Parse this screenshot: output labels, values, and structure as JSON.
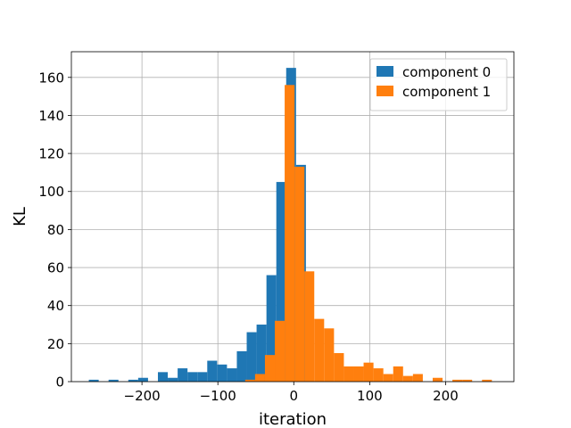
{
  "chart_data": {
    "type": "bar",
    "subtype": "histogram",
    "xlabel": "iteration",
    "ylabel": "KL",
    "xlim": [
      -293,
      290
    ],
    "ylim": [
      0,
      173.5
    ],
    "xticks": [
      -200,
      -100,
      0,
      100,
      200
    ],
    "yticks": [
      0,
      20,
      40,
      60,
      80,
      100,
      120,
      140,
      160
    ],
    "grid": true,
    "legend_position": "top-right",
    "series": [
      {
        "name": "component 0",
        "color": "#1f77b4",
        "bin_width": 13,
        "bins": [
          {
            "x0": -270,
            "count": 1
          },
          {
            "x0": -244,
            "count": 1
          },
          {
            "x0": -218,
            "count": 1
          },
          {
            "x0": -205,
            "count": 2
          },
          {
            "x0": -179,
            "count": 5
          },
          {
            "x0": -166,
            "count": 2
          },
          {
            "x0": -153,
            "count": 7
          },
          {
            "x0": -140,
            "count": 5
          },
          {
            "x0": -127,
            "count": 5
          },
          {
            "x0": -114,
            "count": 11
          },
          {
            "x0": -101,
            "count": 9
          },
          {
            "x0": -88,
            "count": 7
          },
          {
            "x0": -75,
            "count": 16
          },
          {
            "x0": -62,
            "count": 26
          },
          {
            "x0": -49,
            "count": 30
          },
          {
            "x0": -36,
            "count": 56
          },
          {
            "x0": -23,
            "count": 105
          },
          {
            "x0": -10,
            "count": 165
          },
          {
            "x0": 3,
            "count": 114
          }
        ]
      },
      {
        "name": "component 1",
        "color": "#ff7f0e",
        "bin_width": 13,
        "bins": [
          {
            "x0": -64,
            "count": 1
          },
          {
            "x0": -51,
            "count": 4
          },
          {
            "x0": -38,
            "count": 14
          },
          {
            "x0": -25,
            "count": 32
          },
          {
            "x0": -12,
            "count": 156
          },
          {
            "x0": 1,
            "count": 113
          },
          {
            "x0": 14,
            "count": 58
          },
          {
            "x0": 27,
            "count": 33
          },
          {
            "x0": 40,
            "count": 28
          },
          {
            "x0": 53,
            "count": 15
          },
          {
            "x0": 66,
            "count": 8
          },
          {
            "x0": 79,
            "count": 8
          },
          {
            "x0": 92,
            "count": 10
          },
          {
            "x0": 105,
            "count": 7
          },
          {
            "x0": 118,
            "count": 4
          },
          {
            "x0": 131,
            "count": 8
          },
          {
            "x0": 144,
            "count": 3
          },
          {
            "x0": 157,
            "count": 4
          },
          {
            "x0": 183,
            "count": 2
          },
          {
            "x0": 209,
            "count": 1
          },
          {
            "x0": 222,
            "count": 1
          },
          {
            "x0": 248,
            "count": 1
          }
        ]
      }
    ]
  }
}
